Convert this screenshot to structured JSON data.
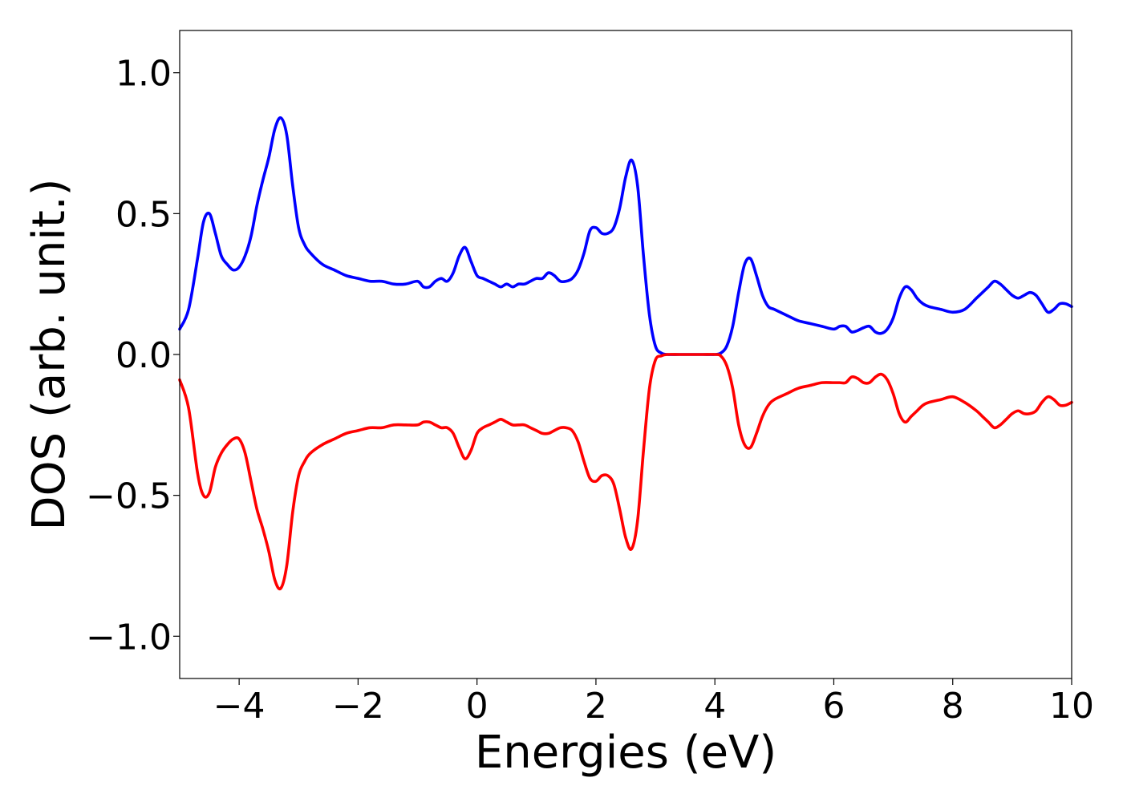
{
  "chart_data": {
    "type": "line",
    "xlabel": "Energies (eV)",
    "ylabel": "DOS (arb. unit.)",
    "xlim": [
      -5,
      10
    ],
    "ylim": [
      -1.15,
      1.15
    ],
    "xticks": [
      -4,
      -2,
      0,
      2,
      4,
      6,
      8,
      10
    ],
    "xtick_labels": [
      "−4",
      "−2",
      "0",
      "2",
      "4",
      "6",
      "8",
      "10"
    ],
    "yticks": [
      1.0,
      0.5,
      0.0,
      -0.5,
      -1.0
    ],
    "ytick_labels": [
      "1.0",
      "0.5",
      "0.0",
      "−0.5",
      "−1.0"
    ],
    "grid": false,
    "legend": false,
    "series": [
      {
        "color": "#0000ff",
        "x": [
          -5.0,
          -4.85,
          -4.7,
          -4.6,
          -4.5,
          -4.4,
          -4.3,
          -4.2,
          -4.1,
          -4.0,
          -3.9,
          -3.8,
          -3.7,
          -3.6,
          -3.5,
          -3.4,
          -3.3,
          -3.2,
          -3.1,
          -3.0,
          -2.9,
          -2.8,
          -2.6,
          -2.4,
          -2.2,
          -2.0,
          -1.8,
          -1.6,
          -1.4,
          -1.2,
          -1.0,
          -0.9,
          -0.8,
          -0.7,
          -0.6,
          -0.5,
          -0.4,
          -0.3,
          -0.2,
          -0.1,
          0.0,
          0.1,
          0.2,
          0.3,
          0.4,
          0.5,
          0.6,
          0.7,
          0.8,
          0.9,
          1.0,
          1.1,
          1.2,
          1.3,
          1.4,
          1.5,
          1.6,
          1.7,
          1.8,
          1.9,
          2.0,
          2.1,
          2.2,
          2.3,
          2.4,
          2.5,
          2.6,
          2.7,
          2.8,
          2.9,
          3.0,
          3.1,
          3.2,
          3.4,
          3.6,
          3.8,
          4.0,
          4.1,
          4.2,
          4.3,
          4.4,
          4.5,
          4.6,
          4.7,
          4.8,
          4.9,
          5.0,
          5.2,
          5.4,
          5.6,
          5.8,
          6.0,
          6.1,
          6.2,
          6.3,
          6.4,
          6.5,
          6.6,
          6.7,
          6.8,
          6.9,
          7.0,
          7.1,
          7.2,
          7.3,
          7.4,
          7.5,
          7.6,
          7.8,
          8.0,
          8.2,
          8.4,
          8.5,
          8.6,
          8.7,
          8.8,
          8.9,
          9.0,
          9.1,
          9.2,
          9.3,
          9.4,
          9.5,
          9.6,
          9.7,
          9.8,
          9.9,
          10.0
        ],
        "values": [
          0.09,
          0.16,
          0.34,
          0.47,
          0.5,
          0.43,
          0.35,
          0.32,
          0.3,
          0.31,
          0.35,
          0.42,
          0.53,
          0.62,
          0.7,
          0.8,
          0.84,
          0.78,
          0.6,
          0.45,
          0.39,
          0.36,
          0.32,
          0.3,
          0.28,
          0.27,
          0.26,
          0.26,
          0.25,
          0.25,
          0.26,
          0.24,
          0.24,
          0.26,
          0.27,
          0.26,
          0.29,
          0.35,
          0.38,
          0.33,
          0.28,
          0.27,
          0.26,
          0.25,
          0.24,
          0.25,
          0.24,
          0.25,
          0.25,
          0.26,
          0.27,
          0.27,
          0.29,
          0.28,
          0.26,
          0.26,
          0.27,
          0.3,
          0.36,
          0.44,
          0.45,
          0.43,
          0.43,
          0.45,
          0.52,
          0.63,
          0.69,
          0.6,
          0.35,
          0.14,
          0.03,
          0.005,
          0.0,
          0.0,
          0.0,
          0.0,
          0.0,
          0.005,
          0.03,
          0.1,
          0.22,
          0.32,
          0.34,
          0.28,
          0.21,
          0.17,
          0.16,
          0.14,
          0.12,
          0.11,
          0.1,
          0.09,
          0.1,
          0.1,
          0.08,
          0.085,
          0.095,
          0.1,
          0.08,
          0.075,
          0.09,
          0.13,
          0.2,
          0.24,
          0.23,
          0.2,
          0.18,
          0.17,
          0.16,
          0.15,
          0.16,
          0.2,
          0.22,
          0.24,
          0.26,
          0.25,
          0.23,
          0.21,
          0.2,
          0.21,
          0.22,
          0.21,
          0.18,
          0.15,
          0.16,
          0.18,
          0.18,
          0.17
        ]
      },
      {
        "color": "#ff0000",
        "x": [
          -5.0,
          -4.85,
          -4.7,
          -4.6,
          -4.5,
          -4.4,
          -4.3,
          -4.2,
          -4.1,
          -4.0,
          -3.9,
          -3.8,
          -3.7,
          -3.6,
          -3.5,
          -3.4,
          -3.3,
          -3.2,
          -3.1,
          -3.0,
          -2.9,
          -2.8,
          -2.6,
          -2.4,
          -2.2,
          -2.0,
          -1.8,
          -1.6,
          -1.4,
          -1.2,
          -1.0,
          -0.9,
          -0.8,
          -0.7,
          -0.6,
          -0.5,
          -0.4,
          -0.3,
          -0.2,
          -0.1,
          0.0,
          0.1,
          0.2,
          0.3,
          0.4,
          0.5,
          0.6,
          0.7,
          0.8,
          0.9,
          1.0,
          1.1,
          1.2,
          1.3,
          1.4,
          1.5,
          1.6,
          1.7,
          1.8,
          1.9,
          2.0,
          2.1,
          2.2,
          2.3,
          2.4,
          2.5,
          2.6,
          2.7,
          2.8,
          2.9,
          3.0,
          3.1,
          3.2,
          3.4,
          3.6,
          3.8,
          4.0,
          4.1,
          4.2,
          4.3,
          4.4,
          4.5,
          4.6,
          4.7,
          4.8,
          4.9,
          5.0,
          5.2,
          5.4,
          5.6,
          5.8,
          6.0,
          6.1,
          6.2,
          6.3,
          6.4,
          6.5,
          6.6,
          6.7,
          6.8,
          6.9,
          7.0,
          7.1,
          7.2,
          7.3,
          7.4,
          7.5,
          7.6,
          7.8,
          8.0,
          8.2,
          8.4,
          8.5,
          8.6,
          8.7,
          8.8,
          8.9,
          9.0,
          9.1,
          9.2,
          9.3,
          9.4,
          9.5,
          9.6,
          9.7,
          9.8,
          9.9,
          10.0
        ],
        "values": [
          -0.09,
          -0.19,
          -0.42,
          -0.5,
          -0.49,
          -0.4,
          -0.35,
          -0.32,
          -0.3,
          -0.3,
          -0.35,
          -0.45,
          -0.55,
          -0.62,
          -0.7,
          -0.8,
          -0.83,
          -0.75,
          -0.56,
          -0.43,
          -0.38,
          -0.35,
          -0.32,
          -0.3,
          -0.28,
          -0.27,
          -0.26,
          -0.26,
          -0.25,
          -0.25,
          -0.25,
          -0.24,
          -0.24,
          -0.25,
          -0.26,
          -0.26,
          -0.28,
          -0.33,
          -0.37,
          -0.34,
          -0.28,
          -0.26,
          -0.25,
          -0.24,
          -0.23,
          -0.24,
          -0.25,
          -0.25,
          -0.25,
          -0.26,
          -0.27,
          -0.28,
          -0.28,
          -0.27,
          -0.26,
          -0.26,
          -0.27,
          -0.31,
          -0.38,
          -0.44,
          -0.45,
          -0.43,
          -0.43,
          -0.46,
          -0.55,
          -0.65,
          -0.69,
          -0.59,
          -0.34,
          -0.12,
          -0.02,
          -0.005,
          0.0,
          0.0,
          0.0,
          0.0,
          0.0,
          -0.005,
          -0.04,
          -0.12,
          -0.25,
          -0.32,
          -0.33,
          -0.28,
          -0.22,
          -0.18,
          -0.16,
          -0.14,
          -0.12,
          -0.11,
          -0.1,
          -0.1,
          -0.1,
          -0.1,
          -0.08,
          -0.085,
          -0.1,
          -0.1,
          -0.08,
          -0.07,
          -0.09,
          -0.14,
          -0.21,
          -0.24,
          -0.22,
          -0.2,
          -0.18,
          -0.17,
          -0.16,
          -0.15,
          -0.17,
          -0.2,
          -0.22,
          -0.24,
          -0.26,
          -0.25,
          -0.23,
          -0.21,
          -0.2,
          -0.21,
          -0.21,
          -0.2,
          -0.17,
          -0.15,
          -0.16,
          -0.18,
          -0.18,
          -0.17
        ]
      }
    ]
  }
}
